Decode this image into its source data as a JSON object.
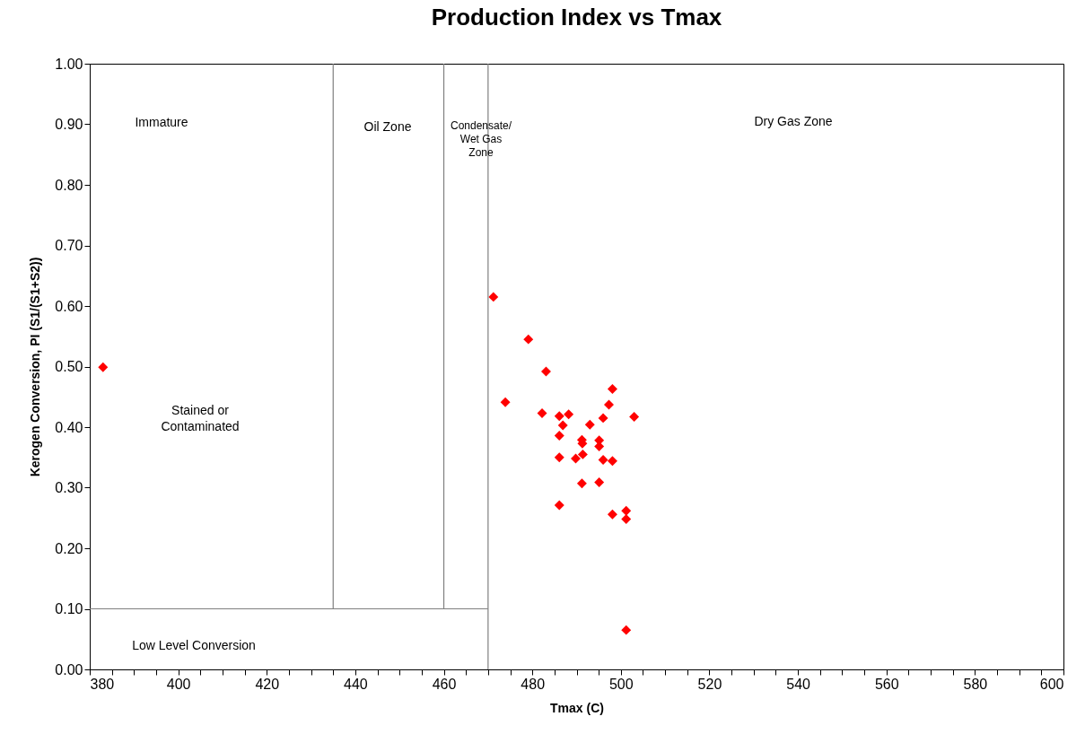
{
  "chart_data": {
    "type": "scatter",
    "title": "Production Index vs Tmax",
    "xlabel": "Tmax (C)",
    "ylabel": "Kerogen Conversion, PI (S1/(S1+S2))",
    "xlim": [
      380,
      600
    ],
    "ylim": [
      0,
      1
    ],
    "xticks": [
      380,
      {
        "value": 385,
        "label": null
      },
      {
        "value": 390,
        "label": null
      },
      {
        "value": 395,
        "label": null
      },
      400,
      {
        "value": 405,
        "label": null
      },
      {
        "value": 410,
        "label": null
      },
      {
        "value": 415,
        "label": null
      },
      420,
      {
        "value": 425,
        "label": null
      },
      {
        "value": 430,
        "label": null
      },
      {
        "value": 435,
        "label": null
      },
      440,
      {
        "value": 445,
        "label": null
      },
      {
        "value": 450,
        "label": null
      },
      {
        "value": 455,
        "label": null
      },
      460,
      {
        "value": 465,
        "label": null
      },
      {
        "value": 470,
        "label": null
      },
      {
        "value": 475,
        "label": null
      },
      480,
      {
        "value": 485,
        "label": null
      },
      {
        "value": 490,
        "label": null
      },
      {
        "value": 495,
        "label": null
      },
      500,
      {
        "value": 505,
        "label": null
      },
      {
        "value": 510,
        "label": null
      },
      {
        "value": 515,
        "label": null
      },
      520,
      {
        "value": 525,
        "label": null
      },
      {
        "value": 530,
        "label": null
      },
      {
        "value": 535,
        "label": null
      },
      540,
      {
        "value": 545,
        "label": null
      },
      {
        "value": 550,
        "label": null
      },
      {
        "value": 555,
        "label": null
      },
      560,
      {
        "value": 565,
        "label": null
      },
      {
        "value": 570,
        "label": null
      },
      {
        "value": 575,
        "label": null
      },
      580,
      {
        "value": 585,
        "label": null
      },
      {
        "value": 590,
        "label": null
      },
      {
        "value": 595,
        "label": null
      },
      600
    ],
    "yticks": [
      {
        "value": 0,
        "label": "0.00"
      },
      {
        "value": 0.1,
        "label": "0.10"
      },
      {
        "value": 0.2,
        "label": "0.20"
      },
      {
        "value": 0.3,
        "label": "0.30"
      },
      {
        "value": 0.4,
        "label": "0.40"
      },
      {
        "value": 0.5,
        "label": "0.50"
      },
      {
        "value": 0.6,
        "label": "0.60"
      },
      {
        "value": 0.7,
        "label": "0.70"
      },
      {
        "value": 0.8,
        "label": "0.80"
      },
      {
        "value": 0.9,
        "label": "0.90"
      },
      {
        "value": 1,
        "label": "1.00"
      }
    ],
    "grid": false,
    "series": [
      {
        "marker": "diamond",
        "color": "#ff0000",
        "x": [
          471.2,
          479.1,
          483.1,
          498.1,
          473.9,
          497.3,
          482.2,
          486.1,
          488.2,
          486.9,
          496.0,
          503.0,
          493.0,
          486.1,
          491.2,
          491.3,
          495.1,
          495.1,
          486.1,
          489.8,
          491.4,
          496.0,
          498.1,
          491.2,
          495.1,
          486.1,
          498.1,
          501.2,
          501.2,
          501.2,
          383.0
        ],
        "values": [
          0.615,
          0.545,
          0.492,
          0.463,
          0.441,
          0.437,
          0.423,
          0.418,
          0.421,
          0.403,
          0.415,
          0.417,
          0.404,
          0.386,
          0.379,
          0.373,
          0.378,
          0.368,
          0.35,
          0.348,
          0.355,
          0.346,
          0.344,
          0.307,
          0.309,
          0.271,
          0.256,
          0.262,
          0.248,
          0.065,
          0.499
        ]
      },
      {
        "type": "line",
        "color": "#808080",
        "x": [
          380,
          470
        ],
        "values": [
          0.1,
          0.1
        ]
      },
      {
        "type": "line",
        "color": "#808080",
        "x": [
          435,
          435
        ],
        "values": [
          0.1,
          1
        ]
      },
      {
        "type": "line",
        "color": "#808080",
        "x": [
          460,
          460
        ],
        "values": [
          0.1,
          1
        ]
      },
      {
        "type": "line",
        "color": "#808080",
        "x": [
          470,
          470
        ],
        "values": [
          0,
          1
        ]
      }
    ],
    "annotations": [
      "Immature",
      "Oil Zone",
      "Condensate/\nWet Gas\nZone",
      "Dry Gas Zone",
      "Stained or\nContaminated",
      "Low Level Conversion"
    ]
  }
}
